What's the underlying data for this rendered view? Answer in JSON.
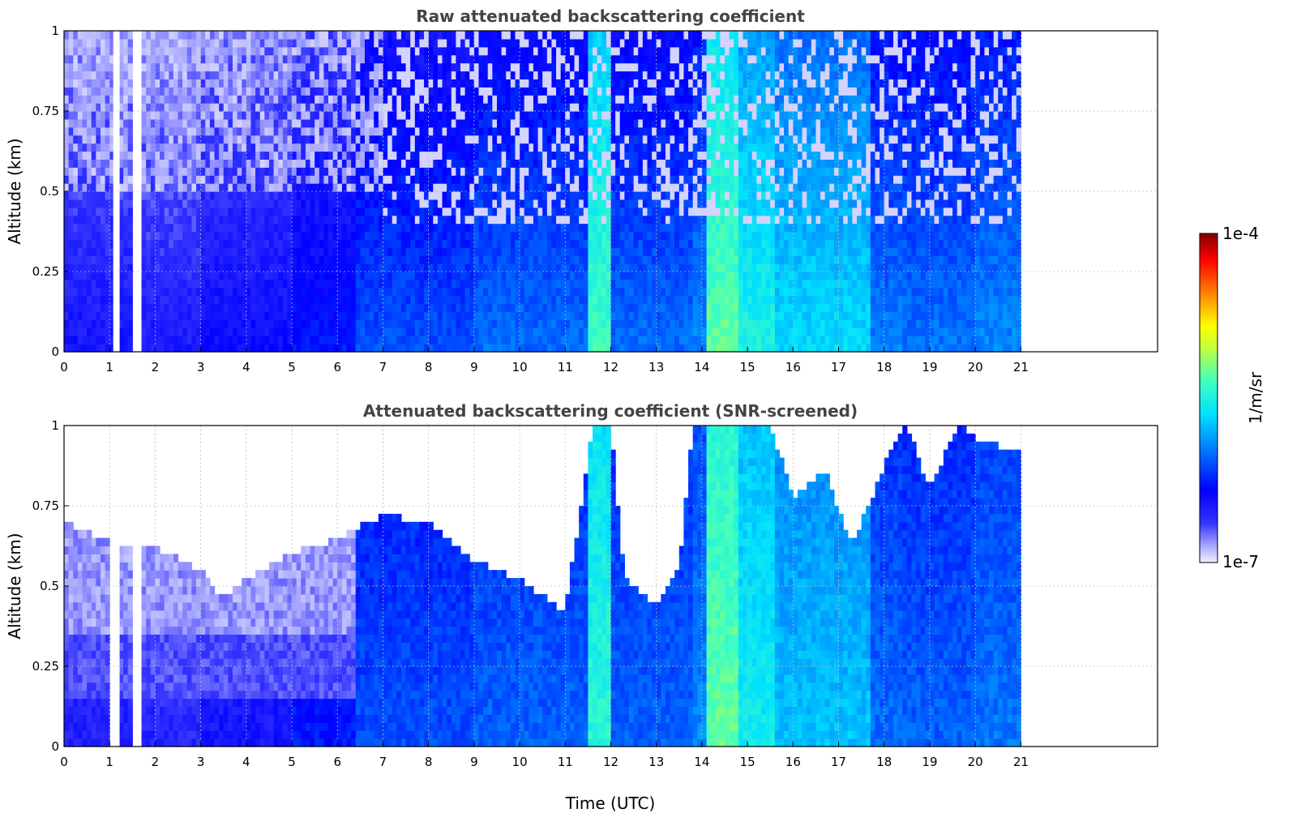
{
  "chart_data": [
    {
      "type": "heatmap",
      "title": "Raw attenuated backscattering coefficient",
      "xlabel": "",
      "ylabel": "Altitude (km)",
      "xlim": [
        0,
        24
      ],
      "ylim": [
        0,
        1
      ],
      "x_ticks": [
        "0",
        "1",
        "2",
        "3",
        "4",
        "5",
        "6",
        "7",
        "8",
        "9",
        "10",
        "11",
        "12",
        "13",
        "14",
        "15",
        "16",
        "17",
        "18",
        "19",
        "20",
        "21"
      ],
      "y_ticks": [
        "0",
        "0.25",
        "0.5",
        "0.75",
        "1"
      ],
      "grid": true,
      "data_extent_hours": [
        0,
        21
      ],
      "screened": false,
      "bands": [
        {
          "t0": 0.0,
          "t1": 1.0,
          "level": 0.18
        },
        {
          "t0": 1.0,
          "t1": 1.1,
          "level": 0.18
        },
        {
          "t0": 1.25,
          "t1": 1.55,
          "level": 0.18
        },
        {
          "t0": 1.7,
          "t1": 3.0,
          "level": 0.17
        },
        {
          "t0": 3.0,
          "t1": 5.0,
          "level": 0.2
        },
        {
          "t0": 5.0,
          "t1": 6.4,
          "level": 0.24
        },
        {
          "t0": 6.4,
          "t1": 9.0,
          "level": 0.3
        },
        {
          "t0": 9.0,
          "t1": 11.5,
          "level": 0.33
        },
        {
          "t0": 11.5,
          "t1": 12.0,
          "level": 0.55
        },
        {
          "t0": 12.0,
          "t1": 13.8,
          "level": 0.33
        },
        {
          "t0": 13.8,
          "t1": 14.15,
          "level": 0.36
        },
        {
          "t0": 14.15,
          "t1": 14.8,
          "level": 0.58
        },
        {
          "t0": 14.8,
          "t1": 15.6,
          "level": 0.5
        },
        {
          "t0": 15.6,
          "t1": 17.7,
          "level": 0.45
        },
        {
          "t0": 17.7,
          "t1": 18.4,
          "level": 0.35
        },
        {
          "t0": 18.4,
          "t1": 20.0,
          "level": 0.34
        },
        {
          "t0": 20.0,
          "t1": 21.0,
          "level": 0.36
        }
      ]
    },
    {
      "type": "heatmap",
      "title": "Attenuated backscattering coefficient (SNR-screened)",
      "xlabel": "Time (UTC)",
      "ylabel": "Altitude (km)",
      "xlim": [
        0,
        24
      ],
      "ylim": [
        0,
        1
      ],
      "x_ticks": [
        "0",
        "1",
        "2",
        "3",
        "4",
        "5",
        "6",
        "7",
        "8",
        "9",
        "10",
        "11",
        "12",
        "13",
        "14",
        "15",
        "16",
        "17",
        "18",
        "19",
        "20",
        "21"
      ],
      "y_ticks": [
        "0",
        "0.25",
        "0.5",
        "0.75",
        "1"
      ],
      "grid": true,
      "data_extent_hours": [
        0,
        21
      ],
      "screened": true,
      "bands": [
        {
          "t0": 0.0,
          "t1": 1.0,
          "level": 0.16
        },
        {
          "t0": 1.25,
          "t1": 1.55,
          "level": 0.16
        },
        {
          "t0": 1.7,
          "t1": 3.0,
          "level": 0.15
        },
        {
          "t0": 3.0,
          "t1": 5.0,
          "level": 0.18
        },
        {
          "t0": 5.0,
          "t1": 6.4,
          "level": 0.24
        },
        {
          "t0": 6.4,
          "t1": 9.0,
          "level": 0.3
        },
        {
          "t0": 9.0,
          "t1": 11.5,
          "level": 0.32
        },
        {
          "t0": 11.5,
          "t1": 12.0,
          "level": 0.52
        },
        {
          "t0": 12.0,
          "t1": 13.8,
          "level": 0.32
        },
        {
          "t0": 13.8,
          "t1": 14.15,
          "level": 0.36
        },
        {
          "t0": 14.15,
          "t1": 14.8,
          "level": 0.58
        },
        {
          "t0": 14.8,
          "t1": 15.6,
          "level": 0.48
        },
        {
          "t0": 15.6,
          "t1": 17.7,
          "level": 0.42
        },
        {
          "t0": 17.7,
          "t1": 18.4,
          "level": 0.33
        },
        {
          "t0": 18.4,
          "t1": 20.0,
          "level": 0.32
        },
        {
          "t0": 20.0,
          "t1": 21.0,
          "level": 0.34
        }
      ],
      "signal_top_km": [
        {
          "t": 0,
          "top": 0.7
        },
        {
          "t": 1,
          "top": 0.64
        },
        {
          "t": 2,
          "top": 0.62
        },
        {
          "t": 3,
          "top": 0.55
        },
        {
          "t": 3.5,
          "top": 0.46
        },
        {
          "t": 4,
          "top": 0.52
        },
        {
          "t": 5,
          "top": 0.6
        },
        {
          "t": 6,
          "top": 0.65
        },
        {
          "t": 7,
          "top": 0.72
        },
        {
          "t": 8,
          "top": 0.7
        },
        {
          "t": 9,
          "top": 0.58
        },
        {
          "t": 10,
          "top": 0.52
        },
        {
          "t": 11,
          "top": 0.42
        },
        {
          "t": 11.6,
          "top": 1.0
        },
        {
          "t": 12,
          "top": 1.0
        },
        {
          "t": 12.3,
          "top": 0.52
        },
        {
          "t": 13,
          "top": 0.44
        },
        {
          "t": 13.5,
          "top": 0.55
        },
        {
          "t": 13.8,
          "top": 1.0
        },
        {
          "t": 15.5,
          "top": 1.0
        },
        {
          "t": 16,
          "top": 0.78
        },
        {
          "t": 16.7,
          "top": 0.86
        },
        {
          "t": 17.3,
          "top": 0.62
        },
        {
          "t": 18,
          "top": 0.88
        },
        {
          "t": 18.5,
          "top": 1.0
        },
        {
          "t": 19,
          "top": 0.8
        },
        {
          "t": 19.6,
          "top": 1.0
        },
        {
          "t": 20.2,
          "top": 0.95
        },
        {
          "t": 21,
          "top": 0.92
        }
      ]
    }
  ],
  "colorbar": {
    "label": "1/m/sr",
    "max_label": "1e-4",
    "min_label": "1e-7",
    "scale": "log",
    "range": [
      1e-07,
      0.0001
    ],
    "colormap": "jet"
  },
  "colors": {
    "title": "#444444",
    "grid": "#bbbbbb"
  }
}
